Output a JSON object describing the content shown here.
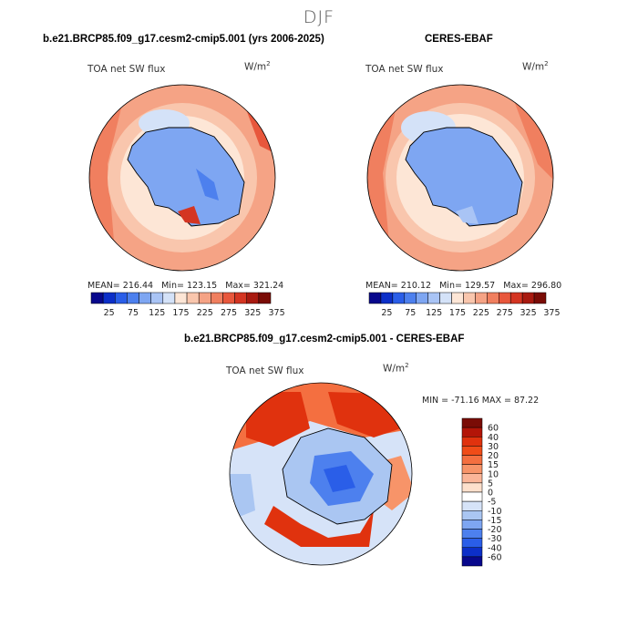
{
  "season": "DJF",
  "panels": [
    {
      "title": "b.e21.BRCP85.f09_g17.cesm2-cmip5.001 (yrs 2006-2025)",
      "variable": "TOA net SW flux",
      "unit_base": "W/m",
      "unit_exp": "2",
      "mean_label": "MEAN=",
      "mean": "216.44",
      "min_label": "Min=",
      "min": "123.15",
      "max_label": "Max=",
      "max": "321.24"
    },
    {
      "title": "CERES-EBAF",
      "variable": "TOA net SW flux",
      "unit_base": "W/m",
      "unit_exp": "2",
      "mean_label": "MEAN=",
      "mean": "210.12",
      "min_label": "Min=",
      "min": "129.57",
      "max_label": "Max=",
      "max": "296.80"
    }
  ],
  "diff_panel": {
    "title": "b.e21.BRCP85.f09_g17.cesm2-cmip5.001 - CERES-EBAF",
    "variable": "TOA net SW flux",
    "unit_base": "W/m",
    "unit_exp": "2",
    "minmax_text": "MIN = -71.16 MAX =  87.22"
  },
  "abs_colorbar": {
    "labels": [
      "25",
      "75",
      "125",
      "175",
      "225",
      "275",
      "325",
      "375"
    ],
    "colors": [
      "#08088c",
      "#0c2fc8",
      "#2a5ee8",
      "#4d80ee",
      "#7ea6f2",
      "#a9c4f5",
      "#d4e2f8",
      "#fde6d6",
      "#f9c6ad",
      "#f5a385",
      "#f07f5f",
      "#e8573c",
      "#d43522",
      "#a81a10",
      "#7a0c06"
    ]
  },
  "diff_colorbar": {
    "labels": [
      "60",
      "40",
      "30",
      "20",
      "15",
      "10",
      "5",
      "0",
      "-5",
      "-10",
      "-15",
      "-20",
      "-30",
      "-40",
      "-60"
    ],
    "colors": [
      "#7a0c06",
      "#b31508",
      "#e0320e",
      "#f04c18",
      "#f46f40",
      "#f79469",
      "#fab598",
      "#fde0cc",
      "#ffffff",
      "#d6e3f8",
      "#aac6f2",
      "#7ea6f2",
      "#4d80ee",
      "#2a5ee8",
      "#0c2fc8",
      "#08088c"
    ]
  }
}
